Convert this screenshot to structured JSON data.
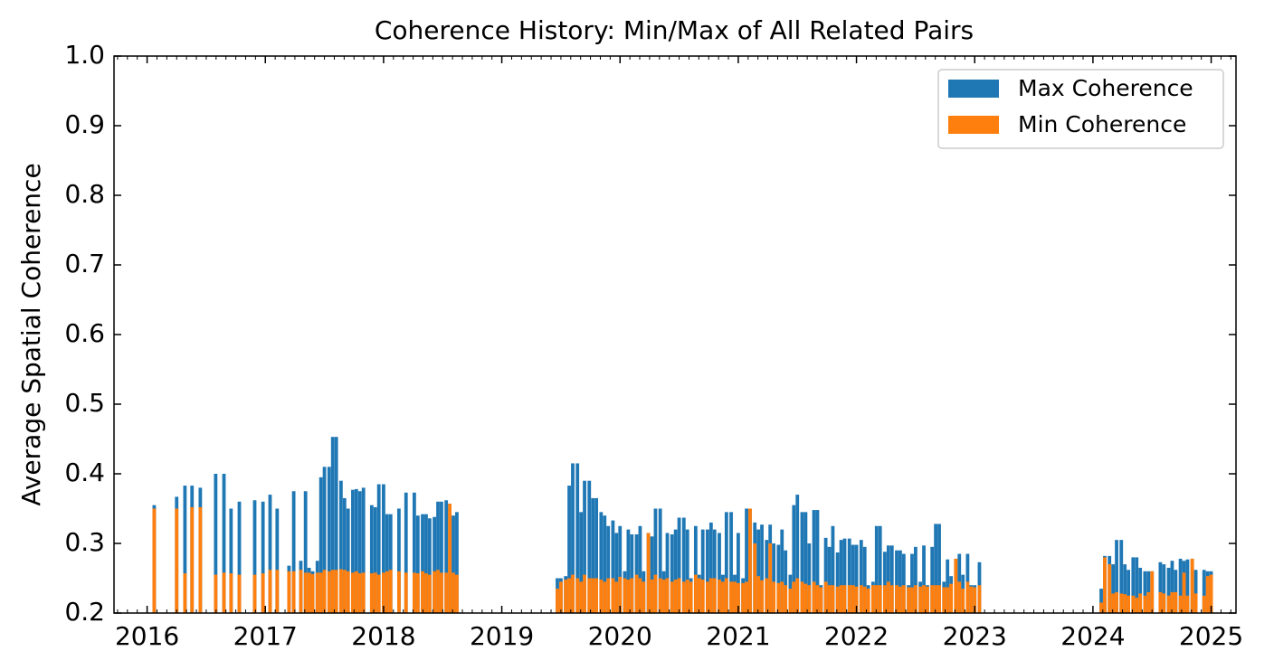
{
  "chart_data": {
    "type": "bar",
    "title": "Coherence History: Min/Max of All Related Pairs",
    "y_label": "Average Spatial Coherence",
    "x": [
      2016.06,
      2016.25,
      2016.32,
      2016.38,
      2016.45,
      2016.58,
      2016.65,
      2016.71,
      2016.78,
      2016.91,
      2016.98,
      2017.04,
      2017.1,
      2017.2,
      2017.24,
      2017.3,
      2017.34,
      2017.37,
      2017.4,
      2017.44,
      2017.47,
      2017.5,
      2017.54,
      2017.57,
      2017.6,
      2017.64,
      2017.67,
      2017.7,
      2017.74,
      2017.77,
      2017.8,
      2017.83,
      2017.9,
      2017.93,
      2017.96,
      2018.0,
      2018.03,
      2018.06,
      2018.13,
      2018.19,
      2018.26,
      2018.29,
      2018.33,
      2018.36,
      2018.39,
      2018.43,
      2018.46,
      2018.49,
      2018.53,
      2018.56,
      2018.59,
      2018.62,
      2019.47,
      2019.5,
      2019.54,
      2019.57,
      2019.6,
      2019.64,
      2019.67,
      2019.7,
      2019.74,
      2019.77,
      2019.8,
      2019.84,
      2019.87,
      2019.9,
      2019.94,
      2019.97,
      2020.0,
      2020.04,
      2020.07,
      2020.1,
      2020.14,
      2020.17,
      2020.2,
      2020.24,
      2020.27,
      2020.3,
      2020.34,
      2020.37,
      2020.4,
      2020.44,
      2020.47,
      2020.5,
      2020.54,
      2020.57,
      2020.6,
      2020.64,
      2020.67,
      2020.7,
      2020.74,
      2020.77,
      2020.8,
      2020.84,
      2020.87,
      2020.9,
      2020.94,
      2020.97,
      2021.0,
      2021.04,
      2021.07,
      2021.1,
      2021.14,
      2021.17,
      2021.2,
      2021.24,
      2021.27,
      2021.3,
      2021.34,
      2021.37,
      2021.4,
      2021.44,
      2021.47,
      2021.5,
      2021.54,
      2021.57,
      2021.6,
      2021.64,
      2021.67,
      2021.7,
      2021.74,
      2021.77,
      2021.8,
      2021.84,
      2021.87,
      2021.9,
      2021.94,
      2021.97,
      2022.0,
      2022.04,
      2022.07,
      2022.1,
      2022.14,
      2022.17,
      2022.2,
      2022.24,
      2022.27,
      2022.3,
      2022.34,
      2022.37,
      2022.4,
      2022.44,
      2022.47,
      2022.5,
      2022.54,
      2022.57,
      2022.6,
      2022.64,
      2022.67,
      2022.7,
      2022.74,
      2022.77,
      2022.8,
      2022.84,
      2022.87,
      2022.9,
      2022.94,
      2022.97,
      2023.0,
      2023.04,
      2024.07,
      2024.1,
      2024.14,
      2024.17,
      2024.2,
      2024.24,
      2024.27,
      2024.3,
      2024.34,
      2024.37,
      2024.4,
      2024.44,
      2024.47,
      2024.5,
      2024.57,
      2024.6,
      2024.64,
      2024.67,
      2024.7,
      2024.74,
      2024.77,
      2024.8,
      2024.84,
      2024.87,
      2024.94,
      2024.97,
      2025.0
    ],
    "series": [
      {
        "name": "Max Coherence",
        "color": "#1f77b4",
        "values": [
          0.355,
          0.367,
          0.383,
          0.383,
          0.38,
          0.4,
          0.4,
          0.35,
          0.36,
          0.362,
          0.36,
          0.37,
          0.35,
          0.268,
          0.375,
          0.275,
          0.375,
          0.265,
          0.26,
          0.275,
          0.395,
          0.41,
          0.41,
          0.453,
          0.453,
          0.39,
          0.365,
          0.35,
          0.377,
          0.378,
          0.375,
          0.38,
          0.355,
          0.352,
          0.385,
          0.385,
          0.342,
          0.342,
          0.35,
          0.373,
          0.373,
          0.34,
          0.342,
          0.342,
          0.336,
          0.338,
          0.36,
          0.36,
          0.362,
          0.357,
          0.34,
          0.345,
          0.25,
          0.25,
          0.253,
          0.383,
          0.415,
          0.415,
          0.345,
          0.39,
          0.39,
          0.365,
          0.365,
          0.345,
          0.34,
          0.325,
          0.333,
          0.315,
          0.325,
          0.26,
          0.32,
          0.313,
          0.313,
          0.325,
          0.26,
          0.315,
          0.31,
          0.35,
          0.35,
          0.26,
          0.315,
          0.313,
          0.32,
          0.337,
          0.337,
          0.32,
          0.25,
          0.325,
          0.255,
          0.32,
          0.32,
          0.33,
          0.32,
          0.315,
          0.255,
          0.345,
          0.345,
          0.255,
          0.315,
          0.25,
          0.35,
          0.35,
          0.33,
          0.32,
          0.327,
          0.305,
          0.327,
          0.3,
          0.298,
          0.32,
          0.29,
          0.255,
          0.355,
          0.37,
          0.345,
          0.345,
          0.3,
          0.348,
          0.348,
          0.24,
          0.308,
          0.295,
          0.325,
          0.287,
          0.305,
          0.307,
          0.307,
          0.298,
          0.298,
          0.305,
          0.295,
          0.24,
          0.245,
          0.325,
          0.325,
          0.288,
          0.297,
          0.297,
          0.29,
          0.29,
          0.285,
          0.24,
          0.285,
          0.295,
          0.245,
          0.297,
          0.24,
          0.295,
          0.328,
          0.328,
          0.245,
          0.277,
          0.253,
          0.278,
          0.285,
          0.255,
          0.285,
          0.24,
          0.24,
          0.273,
          0.235,
          0.282,
          0.282,
          0.27,
          0.305,
          0.305,
          0.27,
          0.262,
          0.28,
          0.28,
          0.265,
          0.26,
          0.26,
          0.26,
          0.273,
          0.27,
          0.265,
          0.275,
          0.262,
          0.278,
          0.275,
          0.277,
          0.278,
          0.262,
          0.262,
          0.26,
          0.26
        ]
      },
      {
        "name": "Min Coherence",
        "color": "#ff7f0e",
        "values": [
          0.35,
          0.35,
          0.257,
          0.352,
          0.352,
          0.255,
          0.258,
          0.257,
          0.255,
          0.255,
          0.257,
          0.262,
          0.262,
          0.26,
          0.26,
          0.262,
          0.258,
          0.258,
          0.256,
          0.258,
          0.258,
          0.262,
          0.26,
          0.262,
          0.262,
          0.263,
          0.262,
          0.26,
          0.258,
          0.26,
          0.257,
          0.258,
          0.257,
          0.258,
          0.255,
          0.258,
          0.26,
          0.262,
          0.26,
          0.258,
          0.258,
          0.257,
          0.26,
          0.257,
          0.255,
          0.26,
          0.262,
          0.258,
          0.258,
          0.357,
          0.258,
          0.255,
          0.235,
          0.245,
          0.248,
          0.25,
          0.255,
          0.25,
          0.245,
          0.255,
          0.25,
          0.25,
          0.25,
          0.248,
          0.245,
          0.25,
          0.25,
          0.245,
          0.252,
          0.25,
          0.248,
          0.25,
          0.255,
          0.25,
          0.245,
          0.315,
          0.248,
          0.255,
          0.25,
          0.248,
          0.25,
          0.245,
          0.248,
          0.25,
          0.245,
          0.248,
          0.245,
          0.255,
          0.25,
          0.248,
          0.245,
          0.25,
          0.25,
          0.248,
          0.245,
          0.25,
          0.245,
          0.245,
          0.243,
          0.243,
          0.245,
          0.35,
          0.3,
          0.253,
          0.247,
          0.25,
          0.3,
          0.245,
          0.243,
          0.245,
          0.24,
          0.235,
          0.245,
          0.25,
          0.245,
          0.242,
          0.24,
          0.245,
          0.24,
          0.237,
          0.245,
          0.24,
          0.24,
          0.238,
          0.24,
          0.24,
          0.24,
          0.24,
          0.238,
          0.24,
          0.238,
          0.235,
          0.24,
          0.24,
          0.24,
          0.24,
          0.245,
          0.24,
          0.24,
          0.238,
          0.24,
          0.237,
          0.237,
          0.24,
          0.238,
          0.24,
          0.238,
          0.24,
          0.24,
          0.24,
          0.237,
          0.237,
          0.242,
          0.278,
          0.245,
          0.235,
          0.245,
          0.238,
          0.237,
          0.24,
          0.215,
          0.28,
          0.27,
          0.228,
          0.23,
          0.228,
          0.227,
          0.225,
          0.225,
          0.222,
          0.228,
          0.225,
          0.23,
          0.26,
          0.23,
          0.228,
          0.225,
          0.23,
          0.23,
          0.225,
          0.258,
          0.225,
          0.278,
          0.228,
          0.225,
          0.253,
          0.255
        ]
      }
    ],
    "xlim": [
      2015.72,
      2025.21
    ],
    "xticks": [
      2016,
      2017,
      2018,
      2019,
      2020,
      2021,
      2022,
      2023,
      2024,
      2025
    ],
    "ylim": [
      0.2,
      1.0
    ],
    "yticks": [
      0.2,
      0.3,
      0.4,
      0.5,
      0.6,
      0.7,
      0.8,
      0.9,
      {
        "value": 1,
        "label": "1.0"
      }
    ],
    "legend": "upper right"
  }
}
